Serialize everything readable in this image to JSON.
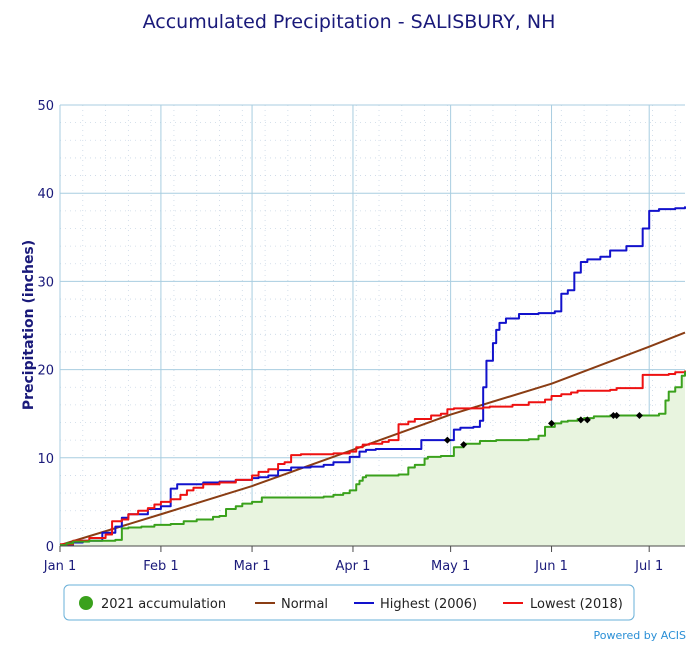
{
  "chart_data": {
    "type": "line",
    "title": "Accumulated Precipitation - SALISBURY, NH",
    "ylabel": "Precipitation (inches)",
    "xlabel": "",
    "ylim": [
      0,
      50
    ],
    "xlim": [
      1,
      193
    ],
    "yticks": [
      0,
      10,
      20,
      30,
      40,
      50
    ],
    "xticks": [
      {
        "label": "Jan 1",
        "day": 1
      },
      {
        "label": "Feb 1",
        "day": 32
      },
      {
        "label": "Mar 1",
        "day": 60
      },
      {
        "label": "Apr 1",
        "day": 91
      },
      {
        "label": "May 1",
        "day": 121
      },
      {
        "label": "Jun 1",
        "day": 152
      },
      {
        "label": "Jul 1",
        "day": 182
      }
    ],
    "grid": true,
    "legend_position": "bottom",
    "credit": "Powered by ACIS",
    "series": [
      {
        "name": "2021 accumulation",
        "color": "#3aa11c",
        "fill": "#e8f4df",
        "legend_marker": "circle",
        "x": [
          1,
          3,
          5,
          10,
          15,
          18,
          20,
          22,
          26,
          30,
          35,
          39,
          43,
          48,
          50,
          52,
          55,
          57,
          60,
          63,
          68,
          75,
          82,
          85,
          88,
          90,
          92,
          93,
          94,
          95,
          96,
          100,
          105,
          108,
          110,
          113,
          114,
          118,
          122,
          125,
          130,
          135,
          140,
          145,
          148,
          150,
          153,
          155,
          157,
          160,
          162,
          165,
          170,
          175,
          180,
          185,
          187,
          188,
          190,
          192,
          193
        ],
        "values": [
          0.1,
          0.3,
          0.5,
          0.6,
          0.6,
          0.7,
          2.0,
          2.1,
          2.2,
          2.4,
          2.5,
          2.8,
          3.0,
          3.3,
          3.4,
          4.2,
          4.5,
          4.8,
          5.0,
          5.5,
          5.5,
          5.5,
          5.6,
          5.8,
          6.0,
          6.3,
          7.0,
          7.4,
          7.8,
          8.0,
          8.0,
          8.0,
          8.1,
          8.9,
          9.2,
          9.9,
          10.1,
          10.2,
          11.2,
          11.6,
          11.9,
          12.0,
          12.0,
          12.1,
          12.5,
          13.5,
          13.9,
          14.1,
          14.2,
          14.4,
          14.5,
          14.7,
          14.8,
          14.8,
          14.8,
          15.0,
          16.5,
          17.5,
          18.0,
          19.3,
          19.8
        ]
      },
      {
        "name": "Normal",
        "color": "#8a3d14",
        "legend_marker": "line",
        "x": [
          1,
          32,
          60,
          91,
          121,
          152,
          182,
          193
        ],
        "values": [
          0.1,
          3.6,
          6.8,
          10.9,
          14.9,
          18.4,
          22.6,
          24.2
        ]
      },
      {
        "name": "Highest (2006)",
        "color": "#1212cc",
        "legend_marker": "line",
        "x": [
          1,
          5,
          8,
          14,
          18,
          20,
          22,
          28,
          32,
          35,
          37,
          45,
          50,
          55,
          60,
          62,
          65,
          68,
          72,
          78,
          82,
          85,
          90,
          93,
          95,
          98,
          105,
          112,
          118,
          122,
          124,
          128,
          130,
          131,
          132,
          134,
          135,
          136,
          138,
          142,
          148,
          150,
          152,
          153,
          155,
          157,
          159,
          161,
          163,
          167,
          170,
          175,
          180,
          182,
          185,
          188,
          190,
          193
        ],
        "values": [
          0.1,
          0.4,
          0.6,
          1.5,
          2.2,
          3.2,
          3.6,
          4.2,
          4.5,
          6.5,
          7.0,
          7.2,
          7.3,
          7.5,
          7.7,
          7.8,
          8.0,
          8.6,
          8.9,
          9.0,
          9.2,
          9.5,
          10.1,
          10.7,
          10.9,
          11.0,
          11.0,
          12.0,
          12.0,
          13.2,
          13.4,
          13.5,
          14.2,
          18.0,
          21.0,
          23.0,
          24.5,
          25.3,
          25.8,
          26.3,
          26.4,
          26.4,
          26.4,
          26.6,
          28.6,
          29.0,
          31.0,
          32.2,
          32.5,
          32.8,
          33.5,
          34.0,
          36.0,
          38.0,
          38.2,
          38.2,
          38.3,
          38.5
        ]
      },
      {
        "name": "Lowest (2018)",
        "color": "#ee1111",
        "legend_marker": "line",
        "x": [
          1,
          5,
          10,
          15,
          17,
          20,
          22,
          25,
          28,
          30,
          32,
          35,
          38,
          40,
          42,
          45,
          50,
          55,
          60,
          62,
          65,
          68,
          70,
          72,
          75,
          78,
          82,
          85,
          88,
          90,
          92,
          94,
          96,
          100,
          102,
          105,
          108,
          110,
          115,
          118,
          120,
          122,
          125,
          128,
          131,
          133,
          135,
          140,
          145,
          150,
          152,
          155,
          158,
          160,
          165,
          170,
          172,
          175,
          180,
          185,
          188,
          190,
          193
        ],
        "values": [
          0.2,
          0.6,
          0.9,
          1.3,
          2.8,
          3.0,
          3.6,
          4.0,
          4.3,
          4.7,
          5.0,
          5.3,
          5.8,
          6.3,
          6.6,
          7.0,
          7.2,
          7.5,
          8.0,
          8.4,
          8.7,
          9.3,
          9.5,
          10.3,
          10.4,
          10.4,
          10.4,
          10.5,
          10.5,
          10.7,
          11.2,
          11.5,
          11.6,
          11.8,
          12.0,
          13.8,
          14.1,
          14.4,
          14.8,
          15.0,
          15.5,
          15.6,
          15.6,
          15.6,
          15.7,
          15.8,
          15.8,
          16.0,
          16.3,
          16.6,
          17.0,
          17.2,
          17.4,
          17.6,
          17.6,
          17.7,
          17.9,
          17.9,
          19.4,
          19.4,
          19.5,
          19.7,
          19.9
        ]
      }
    ],
    "missing_points_2021": {
      "x": [
        120,
        125,
        152,
        161,
        163,
        171,
        172,
        179
      ],
      "values": [
        12.0,
        11.5,
        13.9,
        14.3,
        14.3,
        14.8,
        14.8,
        14.8
      ]
    }
  }
}
